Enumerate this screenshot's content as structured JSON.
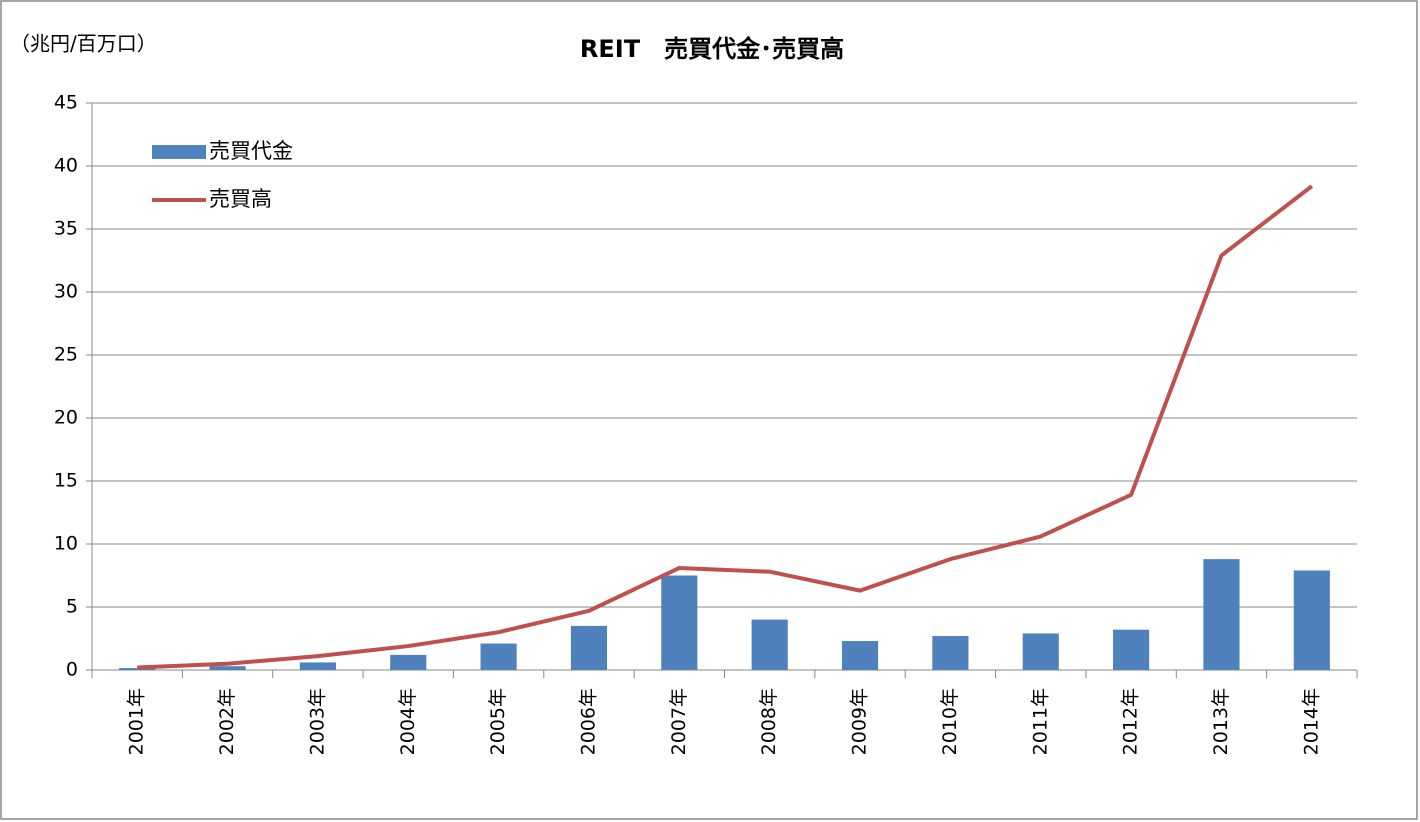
{
  "chart_data": {
    "type": "bar",
    "title": "REIT　売買代金･売買高",
    "y_axis_label": "（兆円/百万口）",
    "categories": [
      "2001年",
      "2002年",
      "2003年",
      "2004年",
      "2005年",
      "2006年",
      "2007年",
      "2008年",
      "2009年",
      "2010年",
      "2011年",
      "2012年",
      "2013年",
      "2014年"
    ],
    "series": [
      {
        "name": "売買代金",
        "type": "bar",
        "color": "#4f81bd",
        "values": [
          0.15,
          0.3,
          0.6,
          1.2,
          2.1,
          3.5,
          7.5,
          4.0,
          2.3,
          2.7,
          2.9,
          3.2,
          8.8,
          7.9
        ]
      },
      {
        "name": "売買高",
        "type": "line",
        "color": "#c0504d",
        "values": [
          0.2,
          0.5,
          1.1,
          1.9,
          3.0,
          4.7,
          8.1,
          7.8,
          6.3,
          8.8,
          10.6,
          13.9,
          32.9,
          38.4
        ]
      }
    ],
    "ylim": [
      0,
      45
    ],
    "yticks": [
      0,
      5,
      10,
      15,
      20,
      25,
      30,
      35,
      40,
      45
    ],
    "grid": true,
    "legend": "top-left"
  }
}
